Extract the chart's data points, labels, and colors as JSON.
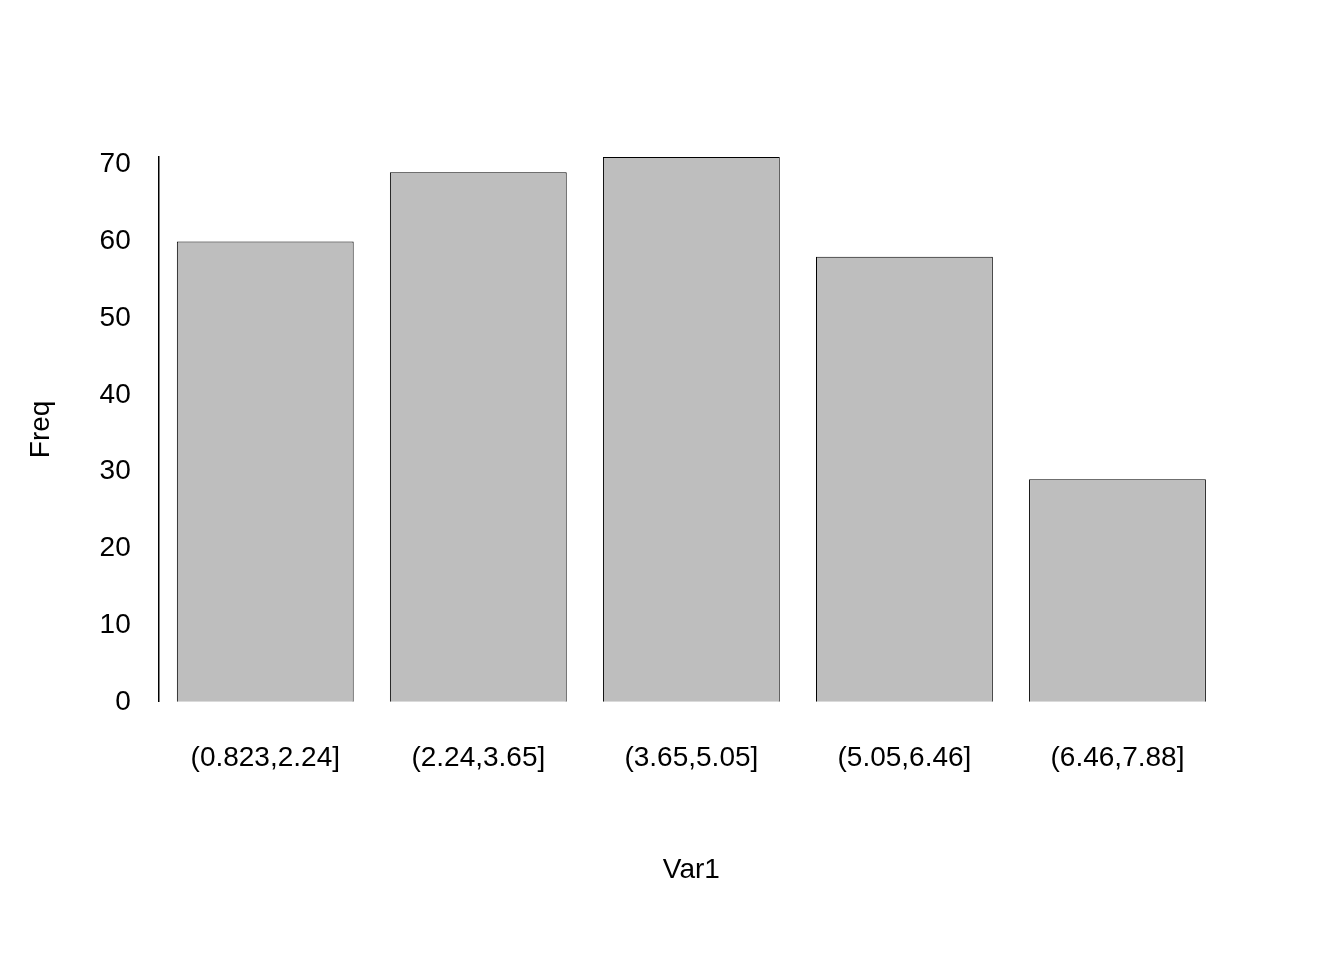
{
  "chart_data": {
    "type": "bar",
    "xlabel": "Var1",
    "ylabel": "Freq",
    "categories": [
      "(0.823,2.24]",
      "(2.24,3.65]",
      "(3.65,5.05]",
      "(5.05,6.46]",
      "(6.46,7.88]"
    ],
    "values": [
      60,
      69,
      71,
      58,
      29
    ],
    "color": "#bebebe",
    "ylim": [
      0,
      71
    ],
    "yticks": [
      0,
      10,
      20,
      30,
      40,
      50,
      60,
      70
    ],
    "grid": false
  }
}
